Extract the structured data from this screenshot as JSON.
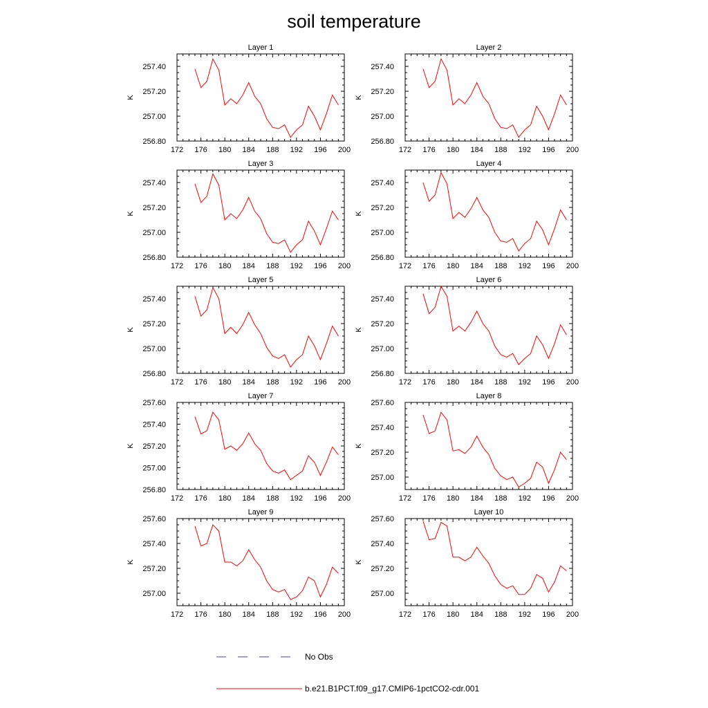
{
  "title": "soil temperature",
  "legend": {
    "placement": "bottom",
    "entries": [
      {
        "label": "No Obs",
        "color": "#4040c0",
        "style": "dashed"
      },
      {
        "label": "b.e21.B1PCT.f09_g17.CMIP6-1pctCO2-cdr.001",
        "color": "#ff0000",
        "style": "solid"
      }
    ]
  },
  "chart_data": [
    {
      "type": "line",
      "title": "Layer 1",
      "ylabel": "K",
      "xlim": [
        172,
        200
      ],
      "ylim": [
        256.8,
        257.5
      ],
      "xticks": [
        "172",
        "176",
        "180",
        "184",
        "188",
        "192",
        "196",
        "200"
      ],
      "yticks": [
        "256.80",
        "257.00",
        "257.20",
        "257.40"
      ],
      "x": [
        175,
        176,
        177,
        178,
        179,
        180,
        181,
        182,
        183,
        184,
        185,
        186,
        187,
        188,
        189,
        190,
        191,
        192,
        193,
        194,
        195,
        196,
        197,
        198,
        199
      ],
      "series": [
        {
          "name": "b.e21.B1PCT.f09_g17.CMIP6-1pctCO2-cdr.001",
          "color": "#ff0000",
          "values": [
            257.38,
            257.23,
            257.28,
            257.46,
            257.37,
            257.09,
            257.14,
            257.1,
            257.17,
            257.27,
            257.16,
            257.1,
            256.98,
            256.91,
            256.9,
            256.93,
            256.83,
            256.89,
            256.93,
            257.08,
            257.0,
            256.89,
            257.02,
            257.17,
            257.09
          ]
        }
      ]
    },
    {
      "type": "line",
      "title": "Layer 2",
      "ylabel": "K",
      "xlim": [
        172,
        200
      ],
      "ylim": [
        256.8,
        257.5
      ],
      "xticks": [
        "172",
        "176",
        "180",
        "184",
        "188",
        "192",
        "196",
        "200"
      ],
      "yticks": [
        "256.80",
        "257.00",
        "257.20",
        "257.40"
      ],
      "x": [
        175,
        176,
        177,
        178,
        179,
        180,
        181,
        182,
        183,
        184,
        185,
        186,
        187,
        188,
        189,
        190,
        191,
        192,
        193,
        194,
        195,
        196,
        197,
        198,
        199
      ],
      "series": [
        {
          "name": "b.e21.B1PCT.f09_g17.CMIP6-1pctCO2-cdr.001",
          "color": "#ff0000",
          "values": [
            257.38,
            257.23,
            257.28,
            257.46,
            257.37,
            257.09,
            257.14,
            257.1,
            257.17,
            257.27,
            257.16,
            257.1,
            256.98,
            256.91,
            256.9,
            256.93,
            256.83,
            256.89,
            256.93,
            257.08,
            257.0,
            256.89,
            257.02,
            257.17,
            257.09
          ]
        }
      ]
    },
    {
      "type": "line",
      "title": "Layer 3",
      "ylabel": "K",
      "xlim": [
        172,
        200
      ],
      "ylim": [
        256.8,
        257.5
      ],
      "xticks": [
        "172",
        "176",
        "180",
        "184",
        "188",
        "192",
        "196",
        "200"
      ],
      "yticks": [
        "256.80",
        "257.00",
        "257.20",
        "257.40"
      ],
      "x": [
        175,
        176,
        177,
        178,
        179,
        180,
        181,
        182,
        183,
        184,
        185,
        186,
        187,
        188,
        189,
        190,
        191,
        192,
        193,
        194,
        195,
        196,
        197,
        198,
        199
      ],
      "series": [
        {
          "name": "b.e21.B1PCT.f09_g17.CMIP6-1pctCO2-cdr.001",
          "color": "#ff0000",
          "values": [
            257.39,
            257.24,
            257.29,
            257.47,
            257.38,
            257.1,
            257.15,
            257.11,
            257.18,
            257.28,
            257.17,
            257.11,
            256.99,
            256.92,
            256.91,
            256.94,
            256.84,
            256.9,
            256.94,
            257.09,
            257.01,
            256.9,
            257.03,
            257.17,
            257.1
          ]
        }
      ]
    },
    {
      "type": "line",
      "title": "Layer 4",
      "ylabel": "K",
      "xlim": [
        172,
        200
      ],
      "ylim": [
        256.8,
        257.5
      ],
      "xticks": [
        "172",
        "176",
        "180",
        "184",
        "188",
        "192",
        "196",
        "200"
      ],
      "yticks": [
        "256.80",
        "257.00",
        "257.20",
        "257.40"
      ],
      "x": [
        175,
        176,
        177,
        178,
        179,
        180,
        181,
        182,
        183,
        184,
        185,
        186,
        187,
        188,
        189,
        190,
        191,
        192,
        193,
        194,
        195,
        196,
        197,
        198,
        199
      ],
      "series": [
        {
          "name": "b.e21.B1PCT.f09_g17.CMIP6-1pctCO2-cdr.001",
          "color": "#ff0000",
          "values": [
            257.4,
            257.25,
            257.3,
            257.48,
            257.39,
            257.11,
            257.16,
            257.12,
            257.19,
            257.28,
            257.18,
            257.12,
            257.0,
            256.93,
            256.92,
            256.95,
            256.85,
            256.91,
            256.95,
            257.09,
            257.02,
            256.9,
            257.03,
            257.18,
            257.1
          ]
        }
      ]
    },
    {
      "type": "line",
      "title": "Layer 5",
      "ylabel": "K",
      "xlim": [
        172,
        200
      ],
      "ylim": [
        256.8,
        257.5
      ],
      "xticks": [
        "172",
        "176",
        "180",
        "184",
        "188",
        "192",
        "196",
        "200"
      ],
      "yticks": [
        "256.80",
        "257.00",
        "257.20",
        "257.40"
      ],
      "x": [
        175,
        176,
        177,
        178,
        179,
        180,
        181,
        182,
        183,
        184,
        185,
        186,
        187,
        188,
        189,
        190,
        191,
        192,
        193,
        194,
        195,
        196,
        197,
        198,
        199
      ],
      "series": [
        {
          "name": "b.e21.B1PCT.f09_g17.CMIP6-1pctCO2-cdr.001",
          "color": "#ff0000",
          "values": [
            257.42,
            257.26,
            257.31,
            257.49,
            257.4,
            257.12,
            257.17,
            257.12,
            257.19,
            257.29,
            257.19,
            257.12,
            257.01,
            256.94,
            256.92,
            256.95,
            256.85,
            256.91,
            256.95,
            257.1,
            257.02,
            256.91,
            257.04,
            257.18,
            257.1
          ]
        }
      ]
    },
    {
      "type": "line",
      "title": "Layer 6",
      "ylabel": "K",
      "xlim": [
        172,
        200
      ],
      "ylim": [
        256.8,
        257.5
      ],
      "xticks": [
        "172",
        "176",
        "180",
        "184",
        "188",
        "192",
        "196",
        "200"
      ],
      "yticks": [
        "256.80",
        "257.00",
        "257.20",
        "257.40"
      ],
      "x": [
        175,
        176,
        177,
        178,
        179,
        180,
        181,
        182,
        183,
        184,
        185,
        186,
        187,
        188,
        189,
        190,
        191,
        192,
        193,
        194,
        195,
        196,
        197,
        198,
        199
      ],
      "series": [
        {
          "name": "b.e21.B1PCT.f09_g17.CMIP6-1pctCO2-cdr.001",
          "color": "#ff0000",
          "values": [
            257.44,
            257.28,
            257.33,
            257.5,
            257.42,
            257.14,
            257.18,
            257.14,
            257.21,
            257.3,
            257.2,
            257.14,
            257.02,
            256.95,
            256.93,
            256.96,
            256.87,
            256.92,
            256.96,
            257.1,
            257.03,
            256.92,
            257.04,
            257.19,
            257.11
          ]
        }
      ]
    },
    {
      "type": "line",
      "title": "Layer 7",
      "ylabel": "K",
      "xlim": [
        172,
        200
      ],
      "ylim": [
        256.8,
        257.6
      ],
      "xticks": [
        "172",
        "176",
        "180",
        "184",
        "188",
        "192",
        "196",
        "200"
      ],
      "yticks": [
        "256.80",
        "257.00",
        "257.20",
        "257.40",
        "257.60"
      ],
      "x": [
        175,
        176,
        177,
        178,
        179,
        180,
        181,
        182,
        183,
        184,
        185,
        186,
        187,
        188,
        189,
        190,
        191,
        192,
        193,
        194,
        195,
        196,
        197,
        198,
        199
      ],
      "series": [
        {
          "name": "b.e21.B1PCT.f09_g17.CMIP6-1pctCO2-cdr.001",
          "color": "#ff0000",
          "values": [
            257.47,
            257.31,
            257.34,
            257.51,
            257.44,
            257.17,
            257.2,
            257.16,
            257.22,
            257.32,
            257.22,
            257.16,
            257.04,
            256.97,
            256.95,
            256.98,
            256.89,
            256.93,
            256.97,
            257.11,
            257.05,
            256.93,
            257.05,
            257.19,
            257.12
          ]
        }
      ]
    },
    {
      "type": "line",
      "title": "Layer 8",
      "ylabel": "K",
      "xlim": [
        172,
        200
      ],
      "ylim": [
        256.9,
        257.6
      ],
      "xticks": [
        "172",
        "176",
        "180",
        "184",
        "188",
        "192",
        "196",
        "200"
      ],
      "yticks": [
        "257.00",
        "257.20",
        "257.40",
        "257.60"
      ],
      "x": [
        175,
        176,
        177,
        178,
        179,
        180,
        181,
        182,
        183,
        184,
        185,
        186,
        187,
        188,
        189,
        190,
        191,
        192,
        193,
        194,
        195,
        196,
        197,
        198,
        199
      ],
      "series": [
        {
          "name": "b.e21.B1PCT.f09_g17.CMIP6-1pctCO2-cdr.001",
          "color": "#ff0000",
          "values": [
            257.5,
            257.35,
            257.37,
            257.52,
            257.46,
            257.21,
            257.22,
            257.19,
            257.24,
            257.33,
            257.24,
            257.18,
            257.07,
            257.01,
            256.98,
            257.0,
            256.92,
            256.95,
            256.99,
            257.12,
            257.08,
            256.95,
            257.06,
            257.2,
            257.14
          ]
        }
      ]
    },
    {
      "type": "line",
      "title": "Layer 9",
      "ylabel": "K",
      "xlim": [
        172,
        200
      ],
      "ylim": [
        256.9,
        257.6
      ],
      "xticks": [
        "172",
        "176",
        "180",
        "184",
        "188",
        "192",
        "196",
        "200"
      ],
      "yticks": [
        "257.00",
        "257.20",
        "257.40",
        "257.60"
      ],
      "x": [
        175,
        176,
        177,
        178,
        179,
        180,
        181,
        182,
        183,
        184,
        185,
        186,
        187,
        188,
        189,
        190,
        191,
        192,
        193,
        194,
        195,
        196,
        197,
        198,
        199
      ],
      "series": [
        {
          "name": "b.e21.B1PCT.f09_g17.CMIP6-1pctCO2-cdr.001",
          "color": "#ff0000",
          "values": [
            257.54,
            257.38,
            257.4,
            257.55,
            257.5,
            257.25,
            257.25,
            257.22,
            257.26,
            257.35,
            257.27,
            257.21,
            257.1,
            257.03,
            257.01,
            257.03,
            256.95,
            256.97,
            257.02,
            257.13,
            257.1,
            256.97,
            257.07,
            257.21,
            257.16
          ]
        }
      ]
    },
    {
      "type": "line",
      "title": "Layer 10",
      "ylabel": "K",
      "xlim": [
        172,
        200
      ],
      "ylim": [
        256.9,
        257.6
      ],
      "xticks": [
        "172",
        "176",
        "180",
        "184",
        "188",
        "192",
        "196",
        "200"
      ],
      "yticks": [
        "257.00",
        "257.20",
        "257.40",
        "257.60"
      ],
      "x": [
        175,
        176,
        177,
        178,
        179,
        180,
        181,
        182,
        183,
        184,
        185,
        186,
        187,
        188,
        189,
        190,
        191,
        192,
        193,
        194,
        195,
        196,
        197,
        198,
        199
      ],
      "series": [
        {
          "name": "b.e21.B1PCT.f09_g17.CMIP6-1pctCO2-cdr.001",
          "color": "#ff0000",
          "values": [
            257.58,
            257.43,
            257.44,
            257.57,
            257.54,
            257.29,
            257.29,
            257.26,
            257.29,
            257.37,
            257.3,
            257.24,
            257.14,
            257.07,
            257.04,
            257.06,
            256.99,
            256.99,
            257.04,
            257.15,
            257.12,
            257.01,
            257.09,
            257.22,
            257.18
          ]
        }
      ]
    }
  ]
}
